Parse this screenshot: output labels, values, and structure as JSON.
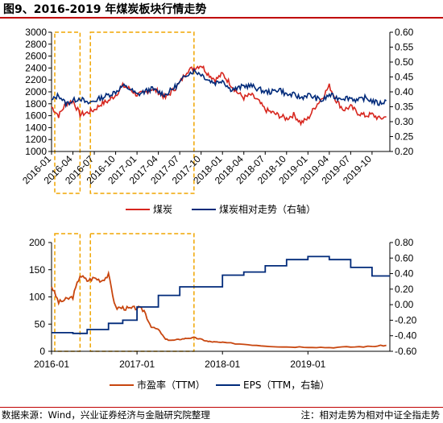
{
  "title": "图9、2016-2019 年煤炭板块行情走势",
  "source": "数据来源：Wind，兴业证券经济与金融研究院整理",
  "note": "注：相对走势为相对中证全指走势",
  "colors": {
    "red": "#d7261e",
    "navy": "#002a7a",
    "orange": "#c8460f",
    "highlight": "#f0a500"
  },
  "chart_data": [
    {
      "type": "line",
      "x_ticks": [
        "2016-01",
        "2016-04",
        "2016-07",
        "2016-10",
        "2017-01",
        "2017-04",
        "2017-07",
        "2017-10",
        "2018-01",
        "2018-04",
        "2018-07",
        "2018-10",
        "2019-01",
        "2019-04",
        "2019-07",
        "2019-10"
      ],
      "ylim": [
        1000,
        3000
      ],
      "y_ticks": [
        "1000",
        "1200",
        "1400",
        "1600",
        "1800",
        "2000",
        "2200",
        "2400",
        "2600",
        "2800",
        "3000"
      ],
      "y2lim": [
        0.2,
        0.6
      ],
      "y2_ticks": [
        "0.20",
        "0.25",
        "0.30",
        "0.35",
        "0.40",
        "0.45",
        "0.50",
        "0.55",
        "0.60"
      ],
      "grid": false,
      "legend": "bottom",
      "highlight_ranges": [
        [
          "2016-01",
          "2016-05"
        ],
        [
          "2016-06",
          "2017-09"
        ]
      ],
      "series": [
        {
          "name": "煤炭",
          "axis": "left",
          "x": [
            "2016-01",
            "2016-02",
            "2016-03",
            "2016-04",
            "2016-05",
            "2016-06",
            "2016-07",
            "2016-08",
            "2016-09",
            "2016-10",
            "2016-11",
            "2016-12",
            "2017-01",
            "2017-02",
            "2017-03",
            "2017-04",
            "2017-05",
            "2017-06",
            "2017-07",
            "2017-08",
            "2017-09",
            "2017-10",
            "2017-11",
            "2017-12",
            "2018-01",
            "2018-02",
            "2018-03",
            "2018-04",
            "2018-05",
            "2018-06",
            "2018-07",
            "2018-08",
            "2018-09",
            "2018-10",
            "2018-11",
            "2018-12",
            "2019-01",
            "2019-02",
            "2019-03",
            "2019-04",
            "2019-05",
            "2019-06",
            "2019-07",
            "2019-08",
            "2019-09",
            "2019-10",
            "2019-11",
            "2019-12"
          ],
          "values": [
            1750,
            1600,
            1800,
            1850,
            1620,
            1650,
            1700,
            1800,
            1850,
            1950,
            2100,
            2050,
            1950,
            1980,
            2050,
            2000,
            1900,
            2020,
            2150,
            2350,
            2400,
            2450,
            2300,
            2200,
            2300,
            2150,
            2000,
            1900,
            1950,
            1850,
            1700,
            1650,
            1600,
            1550,
            1620,
            1480,
            1550,
            1750,
            1900,
            2100,
            1850,
            1700,
            1750,
            1650,
            1600,
            1620,
            1550,
            1580
          ]
        },
        {
          "name": "煤炭相对走势（右轴）",
          "axis": "right",
          "x": [
            "2016-01",
            "2016-02",
            "2016-03",
            "2016-04",
            "2016-05",
            "2016-06",
            "2016-07",
            "2016-08",
            "2016-09",
            "2016-10",
            "2016-11",
            "2016-12",
            "2017-01",
            "2017-02",
            "2017-03",
            "2017-04",
            "2017-05",
            "2017-06",
            "2017-07",
            "2017-08",
            "2017-09",
            "2017-10",
            "2017-11",
            "2017-12",
            "2018-01",
            "2018-02",
            "2018-03",
            "2018-04",
            "2018-05",
            "2018-06",
            "2018-07",
            "2018-08",
            "2018-09",
            "2018-10",
            "2018-11",
            "2018-12",
            "2019-01",
            "2019-02",
            "2019-03",
            "2019-04",
            "2019-05",
            "2019-06",
            "2019-07",
            "2019-08",
            "2019-09",
            "2019-10",
            "2019-11",
            "2019-12"
          ],
          "values": [
            0.37,
            0.39,
            0.36,
            0.37,
            0.38,
            0.36,
            0.37,
            0.38,
            0.39,
            0.4,
            0.42,
            0.41,
            0.39,
            0.4,
            0.41,
            0.4,
            0.39,
            0.41,
            0.43,
            0.46,
            0.47,
            0.46,
            0.44,
            0.43,
            0.44,
            0.41,
            0.41,
            0.42,
            0.42,
            0.41,
            0.4,
            0.4,
            0.41,
            0.39,
            0.39,
            0.38,
            0.39,
            0.38,
            0.37,
            0.39,
            0.38,
            0.38,
            0.38,
            0.37,
            0.38,
            0.37,
            0.36,
            0.37
          ]
        }
      ]
    },
    {
      "type": "line",
      "x_ticks": [
        "2016-01",
        "2017-01",
        "2018-01",
        "2019-01"
      ],
      "ylim": [
        0,
        200
      ],
      "y_ticks": [
        "0",
        "50",
        "100",
        "150",
        "200"
      ],
      "y2lim": [
        -0.6,
        0.8
      ],
      "y2_ticks": [
        "-0.60",
        "-0.40",
        "-0.20",
        "0.00",
        "0.20",
        "0.40",
        "0.60",
        "0.80"
      ],
      "grid": false,
      "legend": "bottom",
      "highlight_ranges": [
        [
          "2016-01",
          "2016-05"
        ],
        [
          "2016-06",
          "2017-09"
        ]
      ],
      "series": [
        {
          "name": "市盈率（TTM）",
          "axis": "left",
          "x": [
            "2016-01",
            "2016-02",
            "2016-03",
            "2016-04",
            "2016-05",
            "2016-06",
            "2016-07",
            "2016-08",
            "2016-09",
            "2016-10",
            "2016-11",
            "2016-12",
            "2017-01",
            "2017-02",
            "2017-03",
            "2017-04",
            "2017-05",
            "2017-06",
            "2017-07",
            "2017-08",
            "2017-09",
            "2017-10",
            "2017-11",
            "2017-12",
            "2018-01",
            "2018-04",
            "2018-07",
            "2018-10",
            "2019-01",
            "2019-04",
            "2019-07",
            "2019-10",
            "2019-12"
          ],
          "values": [
            120,
            90,
            95,
            100,
            140,
            130,
            135,
            130,
            140,
            80,
            80,
            78,
            80,
            75,
            45,
            40,
            22,
            20,
            22,
            24,
            25,
            22,
            18,
            17,
            16,
            13,
            10,
            8,
            8,
            7,
            8,
            9,
            11
          ]
        },
        {
          "name": "EPS（TTM，右轴）",
          "axis": "right",
          "x": [
            "2016-01",
            "2016-04",
            "2016-06",
            "2016-09",
            "2016-11",
            "2017-01",
            "2017-04",
            "2017-07",
            "2017-10",
            "2018-01",
            "2018-04",
            "2018-07",
            "2018-10",
            "2019-01",
            "2019-04",
            "2019-07",
            "2019-10",
            "2019-12"
          ],
          "values": [
            -0.36,
            -0.37,
            -0.32,
            -0.24,
            -0.2,
            -0.03,
            0.12,
            0.23,
            0.23,
            0.38,
            0.42,
            0.5,
            0.58,
            0.62,
            0.58,
            0.48,
            0.37,
            0.37
          ]
        }
      ]
    }
  ]
}
